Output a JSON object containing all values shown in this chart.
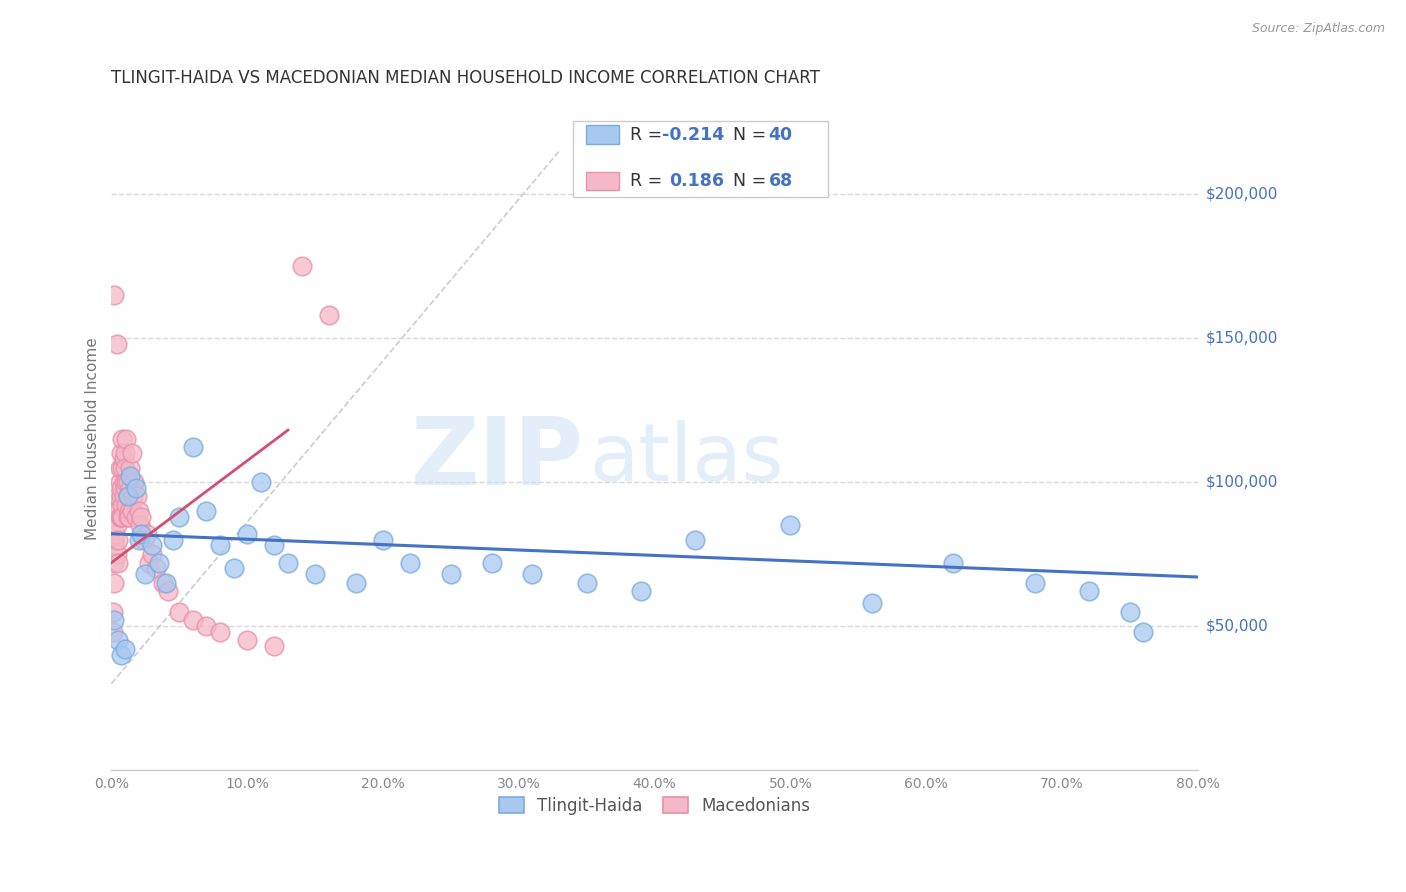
{
  "title": "TLINGIT-HAIDA VS MACEDONIAN MEDIAN HOUSEHOLD INCOME CORRELATION CHART",
  "source": "Source: ZipAtlas.com",
  "ylabel": "Median Household Income",
  "yticks": [
    50000,
    100000,
    150000,
    200000
  ],
  "ytick_labels": [
    "$50,000",
    "$100,000",
    "$150,000",
    "$200,000"
  ],
  "watermark_zip": "ZIP",
  "watermark_atlas": "atlas",
  "legend_r1_label": "R = ",
  "legend_r1_val": "-0.214",
  "legend_n1_label": "N = ",
  "legend_n1_val": "40",
  "legend_r2_label": "R =  ",
  "legend_r2_val": "0.186",
  "legend_n2_label": "N = ",
  "legend_n2_val": "68",
  "blue_scatter_color": "#a8c8f0",
  "blue_scatter_edge": "#7aabdf",
  "pink_scatter_color": "#f5b8c8",
  "pink_scatter_edge": "#e890a8",
  "blue_line_color": "#4472c4",
  "pink_line_color": "#d05070",
  "diag_line_color": "#c8c8c8",
  "text_dark": "#333333",
  "text_blue": "#4472c4",
  "xlim": [
    0.0,
    0.8
  ],
  "ylim": [
    0,
    230000
  ],
  "background_color": "#ffffff",
  "grid_color": "#d8d8d8",
  "tlingit_x": [
    0.002,
    0.005,
    0.007,
    0.01,
    0.012,
    0.014,
    0.018,
    0.02,
    0.022,
    0.025,
    0.03,
    0.035,
    0.04,
    0.045,
    0.05,
    0.06,
    0.07,
    0.08,
    0.09,
    0.1,
    0.11,
    0.12,
    0.13,
    0.15,
    0.18,
    0.2,
    0.22,
    0.25,
    0.28,
    0.31,
    0.35,
    0.39,
    0.43,
    0.5,
    0.56,
    0.62,
    0.68,
    0.72,
    0.75,
    0.76
  ],
  "tlingit_y": [
    52000,
    45000,
    40000,
    42000,
    95000,
    102000,
    98000,
    80000,
    82000,
    68000,
    78000,
    72000,
    65000,
    80000,
    88000,
    112000,
    90000,
    78000,
    70000,
    82000,
    100000,
    78000,
    72000,
    68000,
    65000,
    80000,
    72000,
    68000,
    72000,
    68000,
    65000,
    62000,
    80000,
    85000,
    58000,
    72000,
    65000,
    62000,
    55000,
    48000
  ],
  "mac_x": [
    0.001,
    0.001,
    0.002,
    0.002,
    0.002,
    0.003,
    0.003,
    0.003,
    0.004,
    0.004,
    0.004,
    0.005,
    0.005,
    0.005,
    0.005,
    0.006,
    0.006,
    0.006,
    0.007,
    0.007,
    0.007,
    0.007,
    0.008,
    0.008,
    0.008,
    0.008,
    0.009,
    0.009,
    0.009,
    0.01,
    0.01,
    0.01,
    0.011,
    0.011,
    0.011,
    0.012,
    0.012,
    0.012,
    0.013,
    0.013,
    0.014,
    0.014,
    0.015,
    0.015,
    0.016,
    0.017,
    0.018,
    0.019,
    0.02,
    0.021,
    0.022,
    0.024,
    0.026,
    0.028,
    0.03,
    0.033,
    0.038,
    0.042,
    0.05,
    0.06,
    0.07,
    0.08,
    0.1,
    0.12,
    0.14,
    0.16,
    0.002,
    0.004
  ],
  "mac_y": [
    55000,
    48000,
    65000,
    72000,
    80000,
    78000,
    82000,
    90000,
    85000,
    92000,
    75000,
    80000,
    90000,
    72000,
    95000,
    100000,
    88000,
    105000,
    110000,
    95000,
    88000,
    98000,
    92000,
    105000,
    115000,
    88000,
    100000,
    95000,
    108000,
    110000,
    98000,
    105000,
    115000,
    92000,
    100000,
    88000,
    100000,
    95000,
    90000,
    88000,
    105000,
    98000,
    90000,
    110000,
    95000,
    100000,
    88000,
    95000,
    90000,
    85000,
    88000,
    80000,
    82000,
    72000,
    75000,
    70000,
    65000,
    62000,
    55000,
    52000,
    50000,
    48000,
    45000,
    43000,
    175000,
    158000,
    165000,
    148000
  ]
}
